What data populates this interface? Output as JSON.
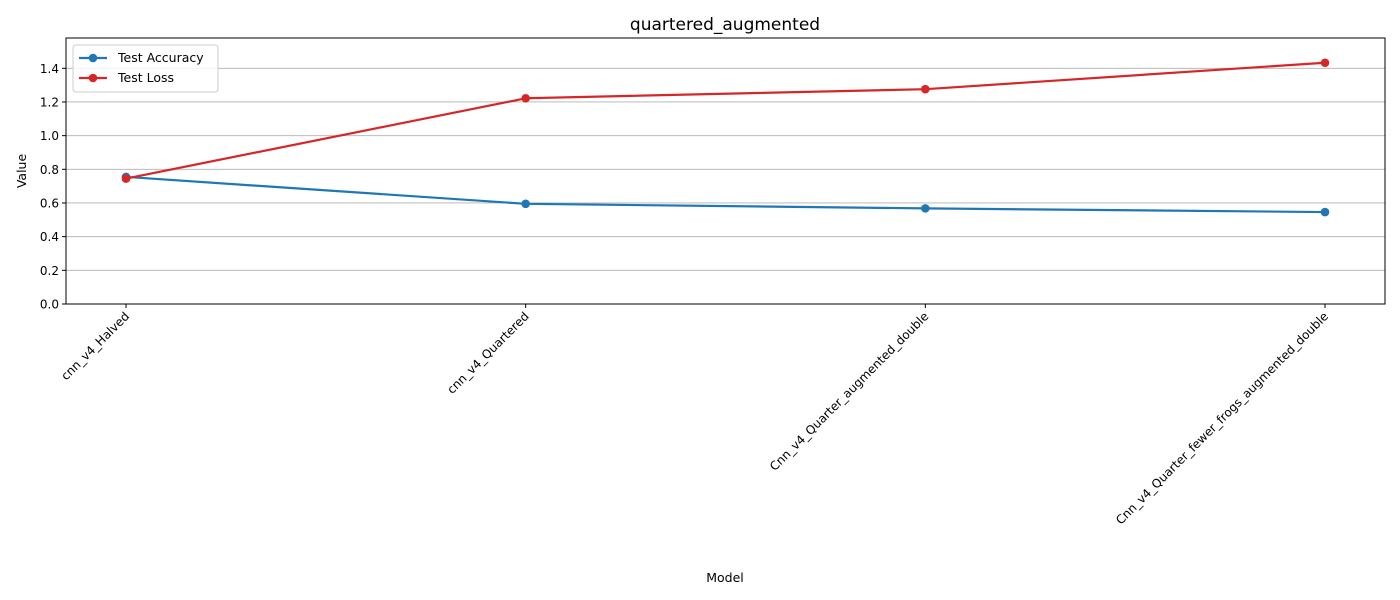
{
  "chart_data": {
    "type": "line",
    "title": "quartered_augmented",
    "xlabel": "Model",
    "ylabel": "Value",
    "categories": [
      "cnn_v4_Halved",
      "cnn_v4_Quartered",
      "Cnn_v4_Quarter_augmented_double",
      "Cnn_v4_Quarter_fewer_frogs_augmented_double"
    ],
    "ylim": [
      0,
      1.58
    ],
    "yticks": [
      "0.0",
      "0.2",
      "0.4",
      "0.6",
      "0.8",
      "1.0",
      "1.2",
      "1.4"
    ],
    "grid": "y-major",
    "legend_position": "top-left",
    "series": [
      {
        "name": "Test Accuracy",
        "color": "#1f77b4",
        "values": [
          0.755,
          0.595,
          0.568,
          0.546
        ]
      },
      {
        "name": "Test Loss",
        "color": "#d62728",
        "values": [
          0.745,
          1.222,
          1.276,
          1.433
        ]
      }
    ]
  }
}
